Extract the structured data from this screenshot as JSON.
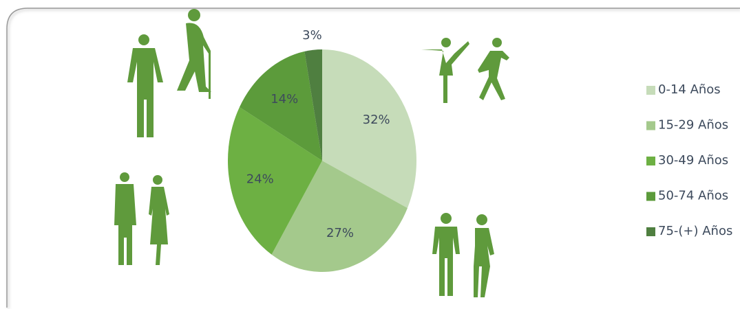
{
  "chart_data": {
    "type": "pie",
    "categories": [
      "0-14 Años",
      "15-29 Años",
      "30-49 Años",
      "50-74 Años",
      "75-(+) Años"
    ],
    "values": [
      32,
      27,
      24,
      14,
      3
    ],
    "value_labels": [
      "32%",
      "27%",
      "24%",
      "14%",
      "3%"
    ],
    "colors": [
      "#c6dcb9",
      "#a4c98c",
      "#6db043",
      "#5c9b3b",
      "#4f7f40"
    ],
    "legend": "right"
  }
}
